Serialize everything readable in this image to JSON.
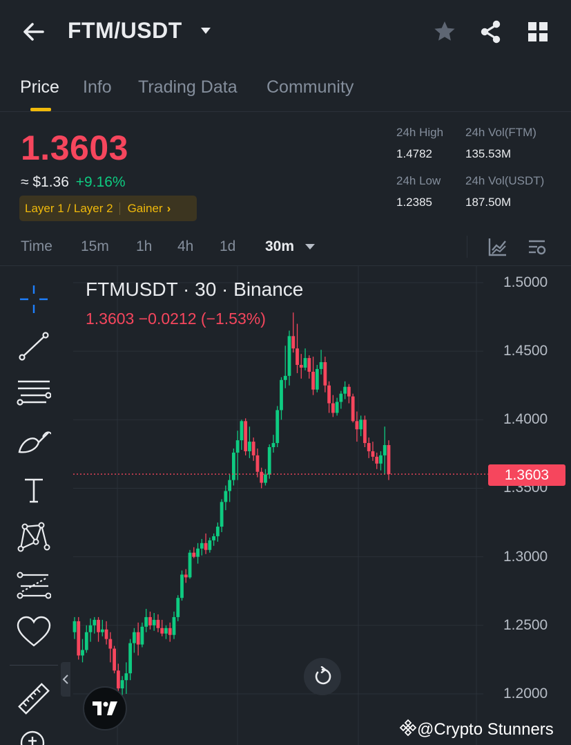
{
  "header": {
    "pair": "FTM/USDT"
  },
  "tabs": [
    {
      "label": "Price"
    },
    {
      "label": "Info"
    },
    {
      "label": "Trading Data"
    },
    {
      "label": "Community"
    }
  ],
  "price": {
    "last": "1.3603",
    "usd": "≈ $1.36",
    "change": "+9.16%",
    "tag1": "Layer 1 / Layer 2",
    "tag2": "Gainer",
    "tag_chevron": "›"
  },
  "stats": {
    "high_label": "24h High",
    "high_value": "1.4782",
    "vol_ftm_label": "24h Vol(FTM)",
    "vol_ftm_value": "135.53M",
    "low_label": "24h Low",
    "low_value": "1.2385",
    "vol_usdt_label": "24h Vol(USDT)",
    "vol_usdt_value": "187.50M"
  },
  "intervals": [
    {
      "label": "Time"
    },
    {
      "label": "15m"
    },
    {
      "label": "1h"
    },
    {
      "label": "4h"
    },
    {
      "label": "1d"
    },
    {
      "label": "30m"
    }
  ],
  "chart": {
    "title": "FTMUSDT · 30 · Binance",
    "ohlc": "1.3603  −0.0212 (−1.53%)",
    "last_tag": "1.3603",
    "y_labels": [
      "1.5000",
      "1.4500",
      "1.4000",
      "1.3500",
      "1.3000",
      "1.2500",
      "1.2000"
    ],
    "logo_text": "17",
    "colors": {
      "up": "#0ecb81",
      "down": "#f6465d",
      "accent": "#f0b90b"
    }
  },
  "chart_data": {
    "type": "candlestick",
    "title": "FTMUSDT · 30 · Binance",
    "y_ticks": [
      1.5,
      1.45,
      1.4,
      1.35,
      1.3,
      1.25,
      1.2
    ],
    "ylim": [
      1.18,
      1.505
    ],
    "last_price": 1.3603,
    "grid": true,
    "candles": [
      [
        1.245,
        1.256,
        1.24,
        1.253
      ],
      [
        1.253,
        1.256,
        1.225,
        1.228
      ],
      [
        1.228,
        1.24,
        1.223,
        1.232
      ],
      [
        1.232,
        1.25,
        1.23,
        1.245
      ],
      [
        1.245,
        1.255,
        1.238,
        1.25
      ],
      [
        1.25,
        1.256,
        1.244,
        1.254
      ],
      [
        1.254,
        1.256,
        1.238,
        1.245
      ],
      [
        1.245,
        1.254,
        1.242,
        1.247
      ],
      [
        1.247,
        1.253,
        1.236,
        1.24
      ],
      [
        1.24,
        1.245,
        1.223,
        1.233
      ],
      [
        1.233,
        1.235,
        1.215,
        1.217
      ],
      [
        1.217,
        1.222,
        1.195,
        1.204
      ],
      [
        1.204,
        1.213,
        1.188,
        1.21
      ],
      [
        1.21,
        1.223,
        1.2,
        1.215
      ],
      [
        1.215,
        1.24,
        1.21,
        1.237
      ],
      [
        1.237,
        1.248,
        1.23,
        1.245
      ],
      [
        1.245,
        1.252,
        1.228,
        1.236
      ],
      [
        1.236,
        1.252,
        1.234,
        1.249
      ],
      [
        1.249,
        1.262,
        1.245,
        1.256
      ],
      [
        1.256,
        1.26,
        1.247,
        1.25
      ],
      [
        1.25,
        1.259,
        1.246,
        1.254
      ],
      [
        1.254,
        1.258,
        1.245,
        1.248
      ],
      [
        1.248,
        1.254,
        1.242,
        1.244
      ],
      [
        1.244,
        1.25,
        1.24,
        1.248
      ],
      [
        1.248,
        1.252,
        1.238,
        1.243
      ],
      [
        1.243,
        1.26,
        1.24,
        1.256
      ],
      [
        1.256,
        1.272,
        1.253,
        1.27
      ],
      [
        1.27,
        1.29,
        1.268,
        1.287
      ],
      [
        1.287,
        1.291,
        1.281,
        1.285
      ],
      [
        1.285,
        1.305,
        1.284,
        1.303
      ],
      [
        1.303,
        1.307,
        1.299,
        1.3
      ],
      [
        1.3,
        1.31,
        1.295,
        1.306
      ],
      [
        1.306,
        1.313,
        1.301,
        1.31
      ],
      [
        1.31,
        1.317,
        1.302,
        1.305
      ],
      [
        1.305,
        1.314,
        1.303,
        1.312
      ],
      [
        1.312,
        1.317,
        1.308,
        1.315
      ],
      [
        1.315,
        1.325,
        1.311,
        1.322
      ],
      [
        1.322,
        1.342,
        1.318,
        1.34
      ],
      [
        1.34,
        1.352,
        1.334,
        1.348
      ],
      [
        1.348,
        1.36,
        1.34,
        1.356
      ],
      [
        1.356,
        1.379,
        1.352,
        1.376
      ],
      [
        1.376,
        1.392,
        1.356,
        1.385
      ],
      [
        1.385,
        1.4,
        1.378,
        1.399
      ],
      [
        1.399,
        1.401,
        1.374,
        1.377
      ],
      [
        1.377,
        1.395,
        1.372,
        1.384
      ],
      [
        1.384,
        1.387,
        1.37,
        1.374
      ],
      [
        1.374,
        1.379,
        1.358,
        1.362
      ],
      [
        1.362,
        1.365,
        1.35,
        1.354
      ],
      [
        1.354,
        1.364,
        1.352,
        1.36
      ],
      [
        1.36,
        1.382,
        1.357,
        1.38
      ],
      [
        1.38,
        1.389,
        1.376,
        1.383
      ],
      [
        1.383,
        1.41,
        1.38,
        1.407
      ],
      [
        1.407,
        1.431,
        1.4,
        1.429
      ],
      [
        1.429,
        1.454,
        1.423,
        1.432
      ],
      [
        1.432,
        1.465,
        1.425,
        1.461
      ],
      [
        1.461,
        1.4782,
        1.449,
        1.452
      ],
      [
        1.452,
        1.47,
        1.434,
        1.44
      ],
      [
        1.44,
        1.448,
        1.43,
        1.438
      ],
      [
        1.438,
        1.452,
        1.436,
        1.445
      ],
      [
        1.445,
        1.447,
        1.43,
        1.435
      ],
      [
        1.435,
        1.446,
        1.418,
        1.422
      ],
      [
        1.422,
        1.44,
        1.42,
        1.437
      ],
      [
        1.437,
        1.451,
        1.433,
        1.442
      ],
      [
        1.442,
        1.446,
        1.42,
        1.425
      ],
      [
        1.425,
        1.428,
        1.405,
        1.412
      ],
      [
        1.412,
        1.418,
        1.402,
        1.405
      ],
      [
        1.405,
        1.416,
        1.403,
        1.413
      ],
      [
        1.413,
        1.421,
        1.408,
        1.419
      ],
      [
        1.419,
        1.428,
        1.415,
        1.424
      ],
      [
        1.424,
        1.426,
        1.412,
        1.417
      ],
      [
        1.417,
        1.419,
        1.398,
        1.399
      ],
      [
        1.399,
        1.406,
        1.384,
        1.393
      ],
      [
        1.393,
        1.403,
        1.388,
        1.4
      ],
      [
        1.4,
        1.403,
        1.38,
        1.383
      ],
      [
        1.383,
        1.387,
        1.372,
        1.377
      ],
      [
        1.377,
        1.384,
        1.37,
        1.373
      ],
      [
        1.373,
        1.376,
        1.364,
        1.368
      ],
      [
        1.368,
        1.377,
        1.363,
        1.374
      ],
      [
        1.374,
        1.395,
        1.36,
        1.3815
      ],
      [
        1.3815,
        1.385,
        1.356,
        1.3603
      ]
    ]
  }
}
